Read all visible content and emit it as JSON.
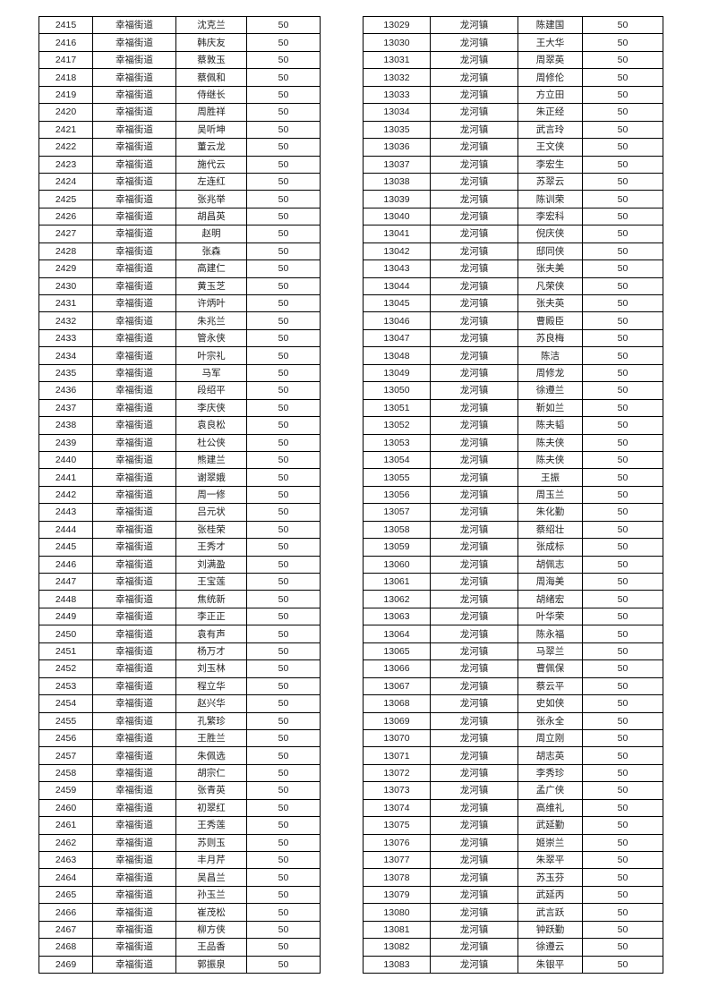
{
  "left_table": {
    "area": "幸福街道",
    "rows": [
      [
        "2415",
        "幸福街道",
        "沈克兰",
        "50"
      ],
      [
        "2416",
        "幸福街道",
        "韩庆友",
        "50"
      ],
      [
        "2417",
        "幸福街道",
        "蔡敦玉",
        "50"
      ],
      [
        "2418",
        "幸福街道",
        "蔡佩和",
        "50"
      ],
      [
        "2419",
        "幸福街道",
        "侍继长",
        "50"
      ],
      [
        "2420",
        "幸福街道",
        "周胜祥",
        "50"
      ],
      [
        "2421",
        "幸福街道",
        "吴听坤",
        "50"
      ],
      [
        "2422",
        "幸福街道",
        "董云龙",
        "50"
      ],
      [
        "2423",
        "幸福街道",
        "施代云",
        "50"
      ],
      [
        "2424",
        "幸福街道",
        "左连红",
        "50"
      ],
      [
        "2425",
        "幸福街道",
        "张兆举",
        "50"
      ],
      [
        "2426",
        "幸福街道",
        "胡昌英",
        "50"
      ],
      [
        "2427",
        "幸福街道",
        "赵明",
        "50"
      ],
      [
        "2428",
        "幸福街道",
        "张森",
        "50"
      ],
      [
        "2429",
        "幸福街道",
        "高建仁",
        "50"
      ],
      [
        "2430",
        "幸福街道",
        "黄玉芝",
        "50"
      ],
      [
        "2431",
        "幸福街道",
        "许炳叶",
        "50"
      ],
      [
        "2432",
        "幸福街道",
        "朱兆兰",
        "50"
      ],
      [
        "2433",
        "幸福街道",
        "管永侠",
        "50"
      ],
      [
        "2434",
        "幸福街道",
        "叶宗礼",
        "50"
      ],
      [
        "2435",
        "幸福街道",
        "马军",
        "50"
      ],
      [
        "2436",
        "幸福街道",
        "段绍平",
        "50"
      ],
      [
        "2437",
        "幸福街道",
        "李庆侠",
        "50"
      ],
      [
        "2438",
        "幸福街道",
        "袁良松",
        "50"
      ],
      [
        "2439",
        "幸福街道",
        "杜公侠",
        "50"
      ],
      [
        "2440",
        "幸福街道",
        "熊建兰",
        "50"
      ],
      [
        "2441",
        "幸福街道",
        "谢翠娥",
        "50"
      ],
      [
        "2442",
        "幸福街道",
        "周一修",
        "50"
      ],
      [
        "2443",
        "幸福街道",
        "吕元状",
        "50"
      ],
      [
        "2444",
        "幸福街道",
        "张桂荣",
        "50"
      ],
      [
        "2445",
        "幸福街道",
        "王秀才",
        "50"
      ],
      [
        "2446",
        "幸福街道",
        "刘满盈",
        "50"
      ],
      [
        "2447",
        "幸福街道",
        "王宝莲",
        "50"
      ],
      [
        "2448",
        "幸福街道",
        "焦统新",
        "50"
      ],
      [
        "2449",
        "幸福街道",
        "李正正",
        "50"
      ],
      [
        "2450",
        "幸福街道",
        "袁有声",
        "50"
      ],
      [
        "2451",
        "幸福街道",
        "杨万才",
        "50"
      ],
      [
        "2452",
        "幸福街道",
        "刘玉林",
        "50"
      ],
      [
        "2453",
        "幸福街道",
        "程立华",
        "50"
      ],
      [
        "2454",
        "幸福街道",
        "赵兴华",
        "50"
      ],
      [
        "2455",
        "幸福街道",
        "孔繁珍",
        "50"
      ],
      [
        "2456",
        "幸福街道",
        "王胜兰",
        "50"
      ],
      [
        "2457",
        "幸福街道",
        "朱佩选",
        "50"
      ],
      [
        "2458",
        "幸福街道",
        "胡宗仁",
        "50"
      ],
      [
        "2459",
        "幸福街道",
        "张青英",
        "50"
      ],
      [
        "2460",
        "幸福街道",
        "初翠红",
        "50"
      ],
      [
        "2461",
        "幸福街道",
        "王秀莲",
        "50"
      ],
      [
        "2462",
        "幸福街道",
        "苏则玉",
        "50"
      ],
      [
        "2463",
        "幸福街道",
        "丰月芹",
        "50"
      ],
      [
        "2464",
        "幸福街道",
        "吴昌兰",
        "50"
      ],
      [
        "2465",
        "幸福街道",
        "孙玉兰",
        "50"
      ],
      [
        "2466",
        "幸福街道",
        "崔茂松",
        "50"
      ],
      [
        "2467",
        "幸福街道",
        "柳方侠",
        "50"
      ],
      [
        "2468",
        "幸福街道",
        "王品香",
        "50"
      ],
      [
        "2469",
        "幸福街道",
        "郭振泉",
        "50"
      ]
    ]
  },
  "right_table": {
    "area": "龙河镇",
    "rows": [
      [
        "13029",
        "龙河镇",
        "陈建国",
        "50"
      ],
      [
        "13030",
        "龙河镇",
        "王大华",
        "50"
      ],
      [
        "13031",
        "龙河镇",
        "周翠英",
        "50"
      ],
      [
        "13032",
        "龙河镇",
        "周修伦",
        "50"
      ],
      [
        "13033",
        "龙河镇",
        "方立田",
        "50"
      ],
      [
        "13034",
        "龙河镇",
        "朱正经",
        "50"
      ],
      [
        "13035",
        "龙河镇",
        "武言玲",
        "50"
      ],
      [
        "13036",
        "龙河镇",
        "王文侠",
        "50"
      ],
      [
        "13037",
        "龙河镇",
        "李宏生",
        "50"
      ],
      [
        "13038",
        "龙河镇",
        "苏翠云",
        "50"
      ],
      [
        "13039",
        "龙河镇",
        "陈训荣",
        "50"
      ],
      [
        "13040",
        "龙河镇",
        "李宏科",
        "50"
      ],
      [
        "13041",
        "龙河镇",
        "倪庆侠",
        "50"
      ],
      [
        "13042",
        "龙河镇",
        "邸同侠",
        "50"
      ],
      [
        "13043",
        "龙河镇",
        "张夫美",
        "50"
      ],
      [
        "13044",
        "龙河镇",
        "凡荣侠",
        "50"
      ],
      [
        "13045",
        "龙河镇",
        "张夫英",
        "50"
      ],
      [
        "13046",
        "龙河镇",
        "曹殿臣",
        "50"
      ],
      [
        "13047",
        "龙河镇",
        "苏良梅",
        "50"
      ],
      [
        "13048",
        "龙河镇",
        "陈洁",
        "50"
      ],
      [
        "13049",
        "龙河镇",
        "周修龙",
        "50"
      ],
      [
        "13050",
        "龙河镇",
        "徐遵兰",
        "50"
      ],
      [
        "13051",
        "龙河镇",
        "靳如兰",
        "50"
      ],
      [
        "13052",
        "龙河镇",
        "陈夫韬",
        "50"
      ],
      [
        "13053",
        "龙河镇",
        "陈夫侠",
        "50"
      ],
      [
        "13054",
        "龙河镇",
        "陈夫侠",
        "50"
      ],
      [
        "13055",
        "龙河镇",
        "王振",
        "50"
      ],
      [
        "13056",
        "龙河镇",
        "周玉兰",
        "50"
      ],
      [
        "13057",
        "龙河镇",
        "朱化勤",
        "50"
      ],
      [
        "13058",
        "龙河镇",
        "蔡绍壮",
        "50"
      ],
      [
        "13059",
        "龙河镇",
        "张成标",
        "50"
      ],
      [
        "13060",
        "龙河镇",
        "胡佩志",
        "50"
      ],
      [
        "13061",
        "龙河镇",
        "周海美",
        "50"
      ],
      [
        "13062",
        "龙河镇",
        "胡绪宏",
        "50"
      ],
      [
        "13063",
        "龙河镇",
        "叶华荣",
        "50"
      ],
      [
        "13064",
        "龙河镇",
        "陈永福",
        "50"
      ],
      [
        "13065",
        "龙河镇",
        "马翠兰",
        "50"
      ],
      [
        "13066",
        "龙河镇",
        "曹佩保",
        "50"
      ],
      [
        "13067",
        "龙河镇",
        "蔡云平",
        "50"
      ],
      [
        "13068",
        "龙河镇",
        "史如侠",
        "50"
      ],
      [
        "13069",
        "龙河镇",
        "张永全",
        "50"
      ],
      [
        "13070",
        "龙河镇",
        "周立刚",
        "50"
      ],
      [
        "13071",
        "龙河镇",
        "胡志英",
        "50"
      ],
      [
        "13072",
        "龙河镇",
        "李秀珍",
        "50"
      ],
      [
        "13073",
        "龙河镇",
        "孟广侠",
        "50"
      ],
      [
        "13074",
        "龙河镇",
        "高维礼",
        "50"
      ],
      [
        "13075",
        "龙河镇",
        "武延勤",
        "50"
      ],
      [
        "13076",
        "龙河镇",
        "姬崇兰",
        "50"
      ],
      [
        "13077",
        "龙河镇",
        "朱翠平",
        "50"
      ],
      [
        "13078",
        "龙河镇",
        "苏玉芬",
        "50"
      ],
      [
        "13079",
        "龙河镇",
        "武延丙",
        "50"
      ],
      [
        "13080",
        "龙河镇",
        "武言跃",
        "50"
      ],
      [
        "13081",
        "龙河镇",
        "钟跃勤",
        "50"
      ],
      [
        "13082",
        "龙河镇",
        "徐遵云",
        "50"
      ],
      [
        "13083",
        "龙河镇",
        "朱银平",
        "50"
      ]
    ]
  }
}
